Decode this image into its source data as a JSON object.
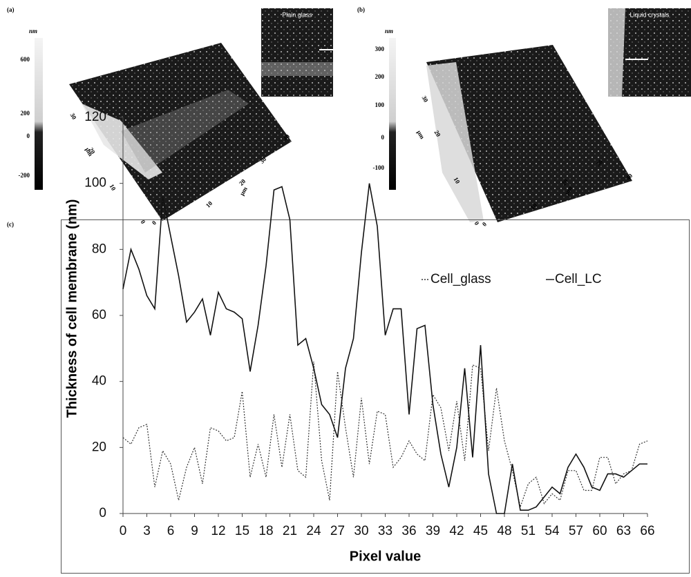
{
  "panels": [
    {
      "label": "(a)",
      "colorbar_unit": "nm",
      "colorbar_ticks": [
        600,
        200,
        0,
        -200
      ],
      "inset_label": "Plain glass",
      "x_axis_ticks": [
        0,
        10,
        20,
        30,
        40
      ],
      "x_axis_unit": "µm",
      "y_axis_ticks": [
        0,
        10,
        20,
        30
      ],
      "y_axis_unit": "µm"
    },
    {
      "label": "(b)",
      "colorbar_unit": "nm",
      "colorbar_ticks": [
        300,
        200,
        100,
        0,
        -100
      ],
      "inset_label": "Liquid crystals",
      "x_axis_ticks": [
        0,
        10,
        20,
        30,
        40
      ],
      "x_axis_unit": "µm",
      "y_axis_ticks": [
        0,
        10,
        20,
        30
      ],
      "y_axis_unit": "µm"
    }
  ],
  "chart_data": {
    "type": "line",
    "panel_label": "(c)",
    "x_label": "Pixel value",
    "y_label": "Thickness of cell membrane (nm)",
    "x": [
      0,
      1,
      2,
      3,
      4,
      5,
      6,
      7,
      8,
      9,
      10,
      11,
      12,
      13,
      14,
      15,
      16,
      17,
      18,
      19,
      20,
      21,
      22,
      23,
      24,
      25,
      26,
      27,
      28,
      29,
      30,
      31,
      32,
      33,
      34,
      35,
      36,
      37,
      38,
      39,
      40,
      41,
      42,
      43,
      44,
      45,
      46,
      47,
      48,
      49,
      50,
      51,
      52,
      53,
      54,
      55,
      56,
      57,
      58,
      59,
      60,
      61,
      62,
      63,
      64,
      65,
      66
    ],
    "series": [
      {
        "name": "Cell_glass",
        "color": "#333333",
        "dash": true,
        "values": [
          23,
          21,
          26,
          27,
          8,
          19,
          15,
          4,
          14,
          20,
          9,
          26,
          25,
          22,
          23,
          37,
          11,
          21,
          11,
          30,
          14,
          30,
          13,
          11,
          46,
          16,
          4,
          43,
          26,
          11,
          35,
          15,
          31,
          30,
          14,
          17,
          22,
          18,
          16,
          36,
          32,
          19,
          34,
          16,
          45,
          44,
          19,
          38,
          22,
          13,
          2,
          9,
          11,
          3,
          6,
          4,
          13,
          13,
          7,
          7,
          17,
          17,
          9,
          12,
          13,
          21,
          22
        ]
      },
      {
        "name": "Cell_LC",
        "color": "#111111",
        "dash": false,
        "values": [
          68,
          80,
          74,
          66,
          62,
          96,
          84,
          72,
          58,
          61,
          65,
          54,
          67,
          62,
          61,
          59,
          43,
          57,
          75,
          98,
          99,
          89,
          51,
          53,
          44,
          33,
          30,
          23,
          44,
          53,
          79,
          100,
          87,
          54,
          62,
          62,
          30,
          56,
          57,
          33,
          18,
          8,
          20,
          44,
          17,
          51,
          12,
          0,
          0,
          15,
          1,
          1,
          2,
          5,
          8,
          6,
          14,
          18,
          14,
          8,
          7,
          12,
          12,
          11,
          13,
          15,
          15
        ]
      }
    ],
    "xlim": [
      0,
      66
    ],
    "xticks": [
      0,
      3,
      6,
      9,
      12,
      15,
      18,
      21,
      24,
      27,
      30,
      33,
      36,
      39,
      42,
      45,
      48,
      51,
      54,
      57,
      60,
      63,
      66
    ],
    "ylim": [
      0,
      120
    ],
    "yticks": [
      0,
      20,
      40,
      60,
      80,
      100,
      120
    ],
    "grid": false,
    "legend": "top-right"
  }
}
